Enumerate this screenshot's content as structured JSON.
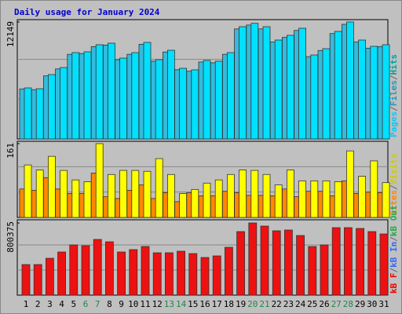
{
  "chart_data": [
    {
      "type": "bar",
      "title": "Daily usage for January 2024",
      "ylim": [
        0,
        12149
      ],
      "yticks": [
        12149
      ],
      "series": [
        {
          "name": "Pages",
          "color": "#00ccff",
          "values": null
        },
        {
          "name": "Files",
          "color": "#2299bb",
          "values": [
            5150,
            5070,
            6515,
            7240,
            8770,
            8850,
            9575,
            9735,
            8205,
            8770,
            9815,
            8045,
            9010,
            7160,
            7000,
            7965,
            7885,
            8770,
            11425,
            11830,
            11425,
            10055,
            10540,
            11265,
            8525,
            9170,
            10940,
            11905,
            10055,
            9410,
            9575
          ]
        },
        {
          "name": "Hits",
          "color": "#00a0a0",
          "values": [
            5254,
            5172,
            6649,
            7388,
            8948,
            9030,
            9769,
            9933,
            8373,
            8948,
            10015,
            8209,
            9194,
            7306,
            7142,
            8127,
            8045,
            8948,
            11657,
            12010,
            11657,
            10261,
            10754,
            11493,
            8701,
            9358,
            11164,
            12149,
            10261,
            9604,
            9769
          ]
        }
      ],
      "bar_colors": [
        "#33bbdd",
        "#00e0ff"
      ]
    },
    {
      "type": "bar",
      "ylim": [
        0,
        161
      ],
      "yticks": [
        161
      ],
      "series": [
        {
          "name": "Sites",
          "color": "#ff8800",
          "values": [
            61,
            58,
            86,
            61,
            51,
            51,
            96,
            44,
            40,
            58,
            70,
            40,
            53,
            33,
            53,
            46,
            46,
            56,
            53,
            47,
            47,
            46,
            61,
            44,
            56,
            56,
            46,
            79,
            51,
            54,
            53
          ]
        },
        {
          "name": "Visits",
          "color": "#cccc00",
          "values": [
            114,
            103,
            133,
            102,
            81,
            77,
            161,
            93,
            102,
            102,
            100,
            128,
            93,
            51,
            60,
            74,
            81,
            93,
            103,
            102,
            93,
            70,
            103,
            79,
            79,
            79,
            77,
            145,
            89,
            123,
            75
          ]
        }
      ],
      "bar_colors": [
        "#ff8800",
        "#ffff00"
      ]
    },
    {
      "type": "bar",
      "ylim": [
        0,
        800375
      ],
      "yticks": [
        800375
      ],
      "categories": [
        "1",
        "2",
        "3",
        "4",
        "5",
        "6",
        "7",
        "8",
        "9",
        "10",
        "11",
        "12",
        "13",
        "14",
        "15",
        "16",
        "17",
        "18",
        "19",
        "20",
        "21",
        "22",
        "23",
        "24",
        "25",
        "26",
        "27",
        "28",
        "29",
        "30",
        "31"
      ],
      "category_colors": [
        "#000000",
        "#000000",
        "#000000",
        "#000000",
        "#000000",
        "#228844",
        "#228844",
        "#000000",
        "#000000",
        "#000000",
        "#000000",
        "#000000",
        "#228844",
        "#228844",
        "#000000",
        "#000000",
        "#000000",
        "#000000",
        "#000000",
        "#228844",
        "#228844",
        "#000000",
        "#000000",
        "#000000",
        "#000000",
        "#000000",
        "#228844",
        "#228844",
        "#000000",
        "#000000",
        "#000000"
      ],
      "series": [
        {
          "name": "kB F",
          "color": "#ee0000",
          "values": [
            334210,
            334210,
            404570,
            474930,
            554085,
            545290,
            615650,
            589265,
            474930,
            501315,
            536495,
            466135,
            466135,
            483725,
            457340,
            413365,
            430955,
            527700,
            703600,
            800375,
            765165,
            712395,
            721190,
            659625,
            536495,
            554085,
            747575,
            747575,
            738780,
            703600,
            677215
          ]
        },
        {
          "name": "kB In",
          "color": "#3366ff",
          "values": null
        },
        {
          "name": "kB Out",
          "color": "#22aa44",
          "values": null
        }
      ],
      "bar_colors": [
        "#ee1111"
      ]
    }
  ]
}
